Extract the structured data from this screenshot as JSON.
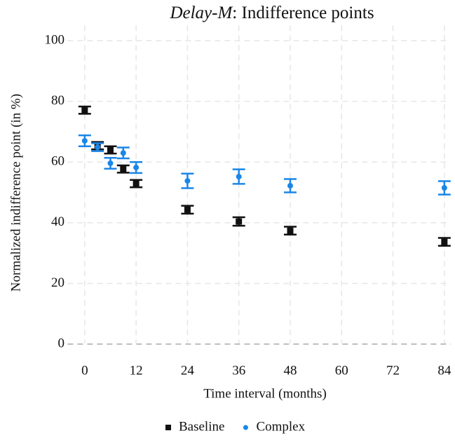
{
  "chart_data": {
    "type": "scatter",
    "title_prefix": "Delay-M",
    "title": ": Indifference points",
    "x_label": "Time interval (months)",
    "y_label": "Normalized indifference point (in %)",
    "x": [
      0,
      3,
      6,
      9,
      12,
      24,
      36,
      48,
      84
    ],
    "series": [
      {
        "name": "Baseline",
        "color": "#111111",
        "marker": "square",
        "values": [
          77.1,
          65.4,
          64.0,
          57.7,
          52.9,
          44.3,
          40.4,
          37.4,
          33.7
        ],
        "errors": [
          1.2,
          1.2,
          1.2,
          1.2,
          1.2,
          1.3,
          1.4,
          1.3,
          1.3
        ]
      },
      {
        "name": "Complex",
        "color": "#1a86e8",
        "marker": "circle",
        "values": [
          67.0,
          64.9,
          59.6,
          63.0,
          58.2,
          53.8,
          55.2,
          52.2,
          51.5
        ],
        "errors": [
          1.8,
          1.3,
          1.8,
          1.8,
          1.8,
          2.4,
          2.4,
          2.2,
          2.2
        ]
      }
    ],
    "xlim": [
      -4,
      85.5
    ],
    "ylim": [
      -5,
      105
    ],
    "xticks": [
      0,
      12,
      24,
      36,
      48,
      60,
      72,
      84
    ],
    "yticks": [
      0,
      20,
      40,
      60,
      80,
      100
    ],
    "grid": true,
    "legend": "bottom"
  }
}
